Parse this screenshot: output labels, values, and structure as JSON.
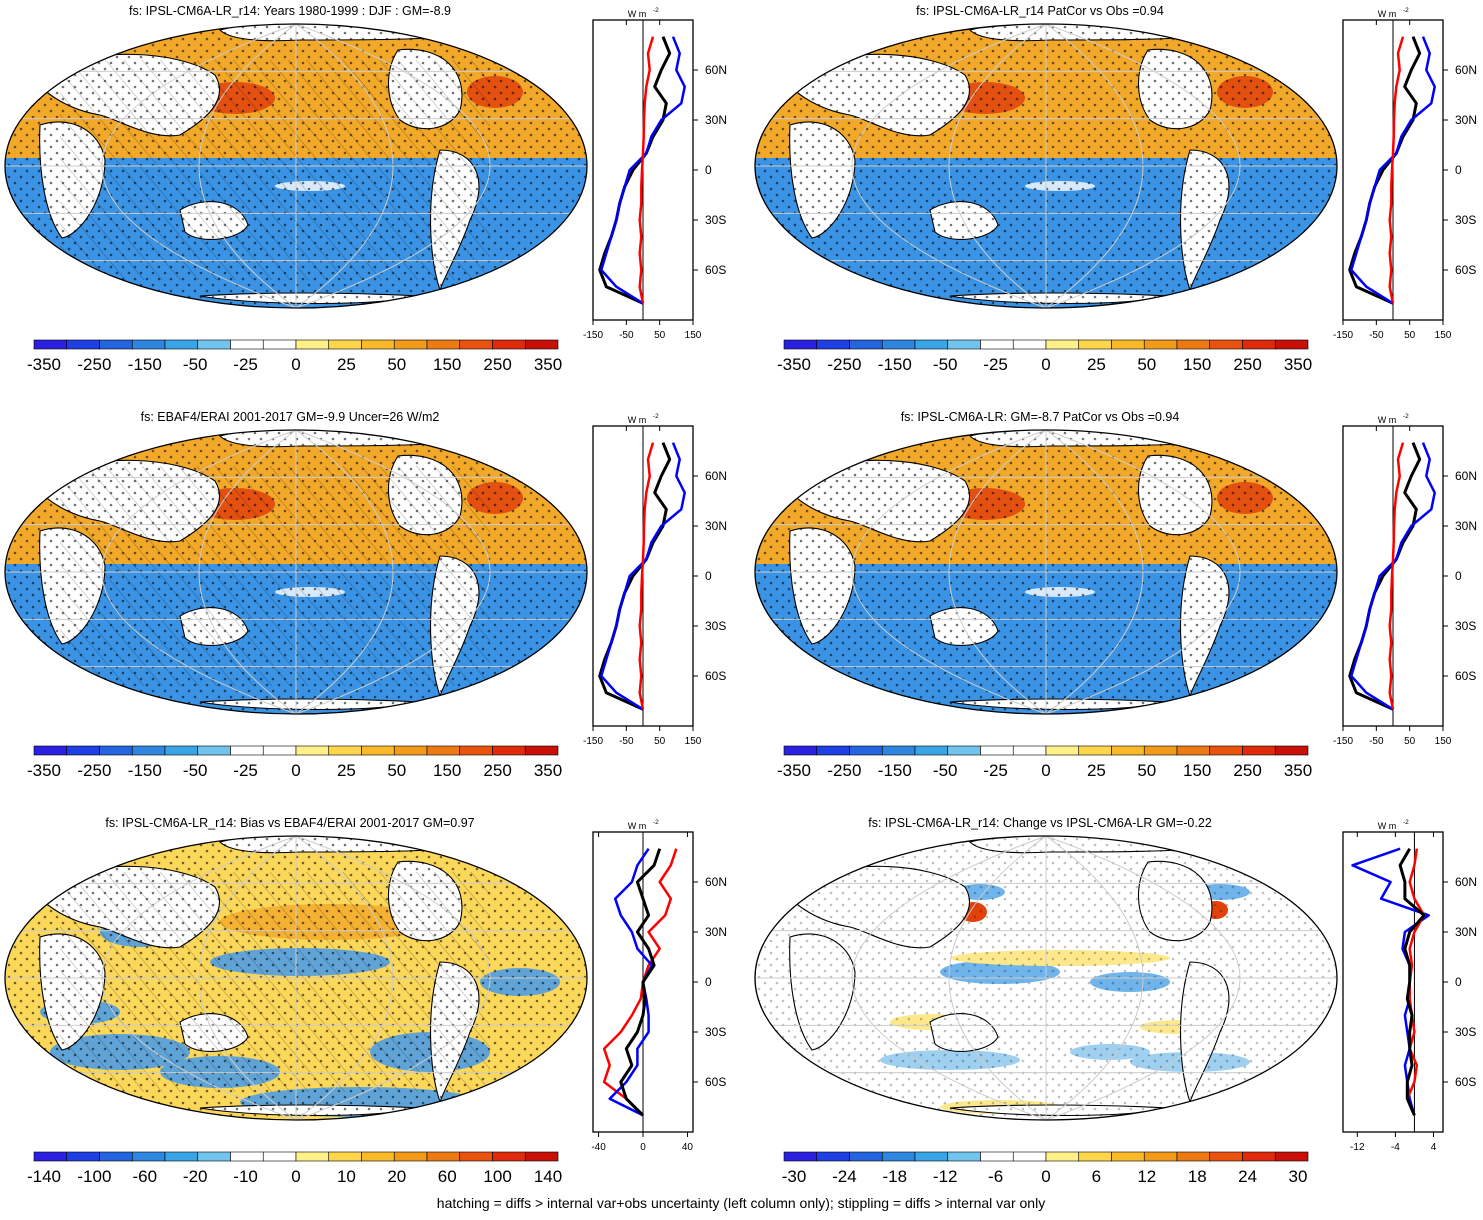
{
  "footer": "hatching = diffs > internal var+obs uncertainty (left column only); stippling = diffs > internal var only",
  "zonal_unit": "W m",
  "zonal_unit_exp": "-2",
  "colors": {
    "model": "#000000",
    "obs": "#0000ff",
    "other": "#ff0000",
    "ocean_neg": "#3a93e4",
    "ocean_pos": "#f2a11f",
    "land": "#ffffff"
  },
  "chart_data": [
    {
      "type": "heatmap",
      "title": "fs: IPSL-CM6A-LR_r14: Years 1980-1999 : DJF : GM=-8.9",
      "kind": "mean",
      "colorbar_labels": [
        "-350",
        "-250",
        "-150",
        "-50",
        "-25",
        "0",
        "25",
        "50",
        "150",
        "250",
        "350"
      ],
      "lat_labels": [
        "60N",
        "30N",
        "0",
        "30S",
        "60S"
      ],
      "zonal_xticks": [
        "-150",
        "-50",
        "50",
        "150"
      ],
      "zonal_xlim": [
        -150,
        150
      ],
      "zonal_series": [
        {
          "color": "black",
          "lat": [
            -80,
            -70,
            -60,
            -50,
            -40,
            -30,
            -20,
            -10,
            0,
            10,
            20,
            30,
            40,
            50,
            60,
            70,
            80
          ],
          "values": [
            0,
            -110,
            -130,
            -115,
            -95,
            -80,
            -70,
            -55,
            -30,
            10,
            30,
            60,
            70,
            35,
            55,
            80,
            60
          ]
        },
        {
          "color": "blue",
          "lat": [
            -80,
            -70,
            -60,
            -50,
            -40,
            -30,
            -20,
            -10,
            0,
            10,
            20,
            30,
            40,
            50,
            60,
            70,
            80
          ],
          "values": [
            0,
            -80,
            -125,
            -110,
            -95,
            -80,
            -70,
            -55,
            -40,
            10,
            25,
            55,
            115,
            125,
            100,
            110,
            90
          ]
        },
        {
          "color": "red",
          "lat": [
            -80,
            -70,
            -60,
            -50,
            -40,
            -30,
            -20,
            -10,
            0,
            10,
            20,
            30,
            40,
            50,
            60,
            70,
            80
          ],
          "values": [
            0,
            -10,
            -5,
            -10,
            -5,
            -10,
            -5,
            -5,
            -3,
            0,
            2,
            3,
            5,
            10,
            20,
            15,
            30
          ]
        }
      ]
    },
    {
      "type": "heatmap",
      "title": "fs: IPSL-CM6A-LR_r14 PatCor vs Obs =0.94",
      "kind": "mean",
      "colorbar_labels": [
        "-350",
        "-250",
        "-150",
        "-50",
        "-25",
        "0",
        "25",
        "50",
        "150",
        "250",
        "350"
      ],
      "lat_labels": [
        "60N",
        "30N",
        "0",
        "30S",
        "60S"
      ],
      "zonal_xticks": [
        "-150",
        "-50",
        "50",
        "150"
      ],
      "zonal_xlim": [
        -150,
        150
      ],
      "zonal_series": [
        {
          "color": "black",
          "lat": [
            -80,
            -70,
            -60,
            -50,
            -40,
            -30,
            -20,
            -10,
            0,
            10,
            20,
            30,
            40,
            50,
            60,
            70,
            80
          ],
          "values": [
            0,
            -110,
            -130,
            -115,
            -95,
            -80,
            -70,
            -55,
            -30,
            10,
            30,
            60,
            70,
            35,
            55,
            80,
            60
          ]
        },
        {
          "color": "blue",
          "lat": [
            -80,
            -70,
            -60,
            -50,
            -40,
            -30,
            -20,
            -10,
            0,
            10,
            20,
            30,
            40,
            50,
            60,
            70,
            80
          ],
          "values": [
            0,
            -80,
            -125,
            -110,
            -95,
            -80,
            -70,
            -55,
            -40,
            10,
            25,
            55,
            115,
            125,
            100,
            110,
            90
          ]
        },
        {
          "color": "red",
          "lat": [
            -80,
            -70,
            -60,
            -50,
            -40,
            -30,
            -20,
            -10,
            0,
            10,
            20,
            30,
            40,
            50,
            60,
            70,
            80
          ],
          "values": [
            0,
            -10,
            -5,
            -10,
            -5,
            -10,
            -5,
            -5,
            -3,
            0,
            2,
            3,
            5,
            10,
            20,
            15,
            30
          ]
        }
      ]
    },
    {
      "type": "heatmap",
      "title": "fs: EBAF4/ERAI 2001-2017 GM=-9.9 Uncer=26 W/m2",
      "kind": "mean",
      "colorbar_labels": [
        "-350",
        "-250",
        "-150",
        "-50",
        "-25",
        "0",
        "25",
        "50",
        "150",
        "250",
        "350"
      ],
      "lat_labels": [
        "60N",
        "30N",
        "0",
        "30S",
        "60S"
      ],
      "zonal_xticks": [
        "-150",
        "-50",
        "50",
        "150"
      ],
      "zonal_xlim": [
        -150,
        150
      ],
      "zonal_series": [
        {
          "color": "black",
          "lat": [
            -80,
            -70,
            -60,
            -50,
            -40,
            -30,
            -20,
            -10,
            0,
            10,
            20,
            30,
            40,
            50,
            60,
            70,
            80
          ],
          "values": [
            0,
            -110,
            -130,
            -115,
            -95,
            -80,
            -70,
            -55,
            -30,
            10,
            30,
            60,
            70,
            35,
            55,
            80,
            60
          ]
        },
        {
          "color": "blue",
          "lat": [
            -80,
            -70,
            -60,
            -50,
            -40,
            -30,
            -20,
            -10,
            0,
            10,
            20,
            30,
            40,
            50,
            60,
            70,
            80
          ],
          "values": [
            0,
            -80,
            -125,
            -110,
            -95,
            -80,
            -70,
            -55,
            -40,
            10,
            25,
            55,
            115,
            125,
            100,
            110,
            90
          ]
        },
        {
          "color": "red",
          "lat": [
            -80,
            -70,
            -60,
            -50,
            -40,
            -30,
            -20,
            -10,
            0,
            10,
            20,
            30,
            40,
            50,
            60,
            70,
            80
          ],
          "values": [
            0,
            -10,
            -5,
            -10,
            -5,
            -10,
            -5,
            -5,
            -3,
            0,
            2,
            3,
            5,
            10,
            20,
            15,
            30
          ]
        }
      ]
    },
    {
      "type": "heatmap",
      "title": "fs: IPSL-CM6A-LR: GM=-8.7 PatCor vs Obs =0.94",
      "kind": "mean",
      "colorbar_labels": [
        "-350",
        "-250",
        "-150",
        "-50",
        "-25",
        "0",
        "25",
        "50",
        "150",
        "250",
        "350"
      ],
      "lat_labels": [
        "60N",
        "30N",
        "0",
        "30S",
        "60S"
      ],
      "zonal_xticks": [
        "-150",
        "-50",
        "50",
        "150"
      ],
      "zonal_xlim": [
        -150,
        150
      ],
      "zonal_series": [
        {
          "color": "black",
          "lat": [
            -80,
            -70,
            -60,
            -50,
            -40,
            -30,
            -20,
            -10,
            0,
            10,
            20,
            30,
            40,
            50,
            60,
            70,
            80
          ],
          "values": [
            0,
            -110,
            -130,
            -115,
            -95,
            -80,
            -70,
            -55,
            -30,
            10,
            30,
            60,
            70,
            35,
            55,
            80,
            60
          ]
        },
        {
          "color": "blue",
          "lat": [
            -80,
            -70,
            -60,
            -50,
            -40,
            -30,
            -20,
            -10,
            0,
            10,
            20,
            30,
            40,
            50,
            60,
            70,
            80
          ],
          "values": [
            0,
            -80,
            -125,
            -110,
            -95,
            -80,
            -70,
            -55,
            -40,
            10,
            25,
            55,
            115,
            125,
            100,
            110,
            90
          ]
        },
        {
          "color": "red",
          "lat": [
            -80,
            -70,
            -60,
            -50,
            -40,
            -30,
            -20,
            -10,
            0,
            10,
            20,
            30,
            40,
            50,
            60,
            70,
            80
          ],
          "values": [
            0,
            -10,
            -5,
            -10,
            -5,
            -10,
            -5,
            -5,
            -3,
            0,
            2,
            3,
            5,
            10,
            20,
            15,
            30
          ]
        }
      ]
    },
    {
      "type": "heatmap",
      "title": "fs: IPSL-CM6A-LR_r14: Bias vs EBAF4/ERAI 2001-2017 GM=0.97",
      "kind": "bias",
      "colorbar_labels": [
        "-140",
        "-100",
        "-60",
        "-20",
        "-10",
        "0",
        "10",
        "20",
        "60",
        "100",
        "140"
      ],
      "lat_labels": [
        "60N",
        "30N",
        "0",
        "30S",
        "60S"
      ],
      "zonal_xticks": [
        "-40",
        "0",
        "40"
      ],
      "zonal_xlim": [
        -45,
        45
      ],
      "zonal_series": [
        {
          "color": "red",
          "lat": [
            -80,
            -70,
            -60,
            -50,
            -40,
            -30,
            -20,
            -10,
            0,
            10,
            20,
            30,
            40,
            50,
            60,
            70,
            80
          ],
          "values": [
            0,
            -15,
            -35,
            -30,
            -35,
            -20,
            -10,
            -2,
            0,
            5,
            15,
            5,
            20,
            25,
            15,
            25,
            30
          ]
        },
        {
          "color": "blue",
          "lat": [
            -80,
            -70,
            -60,
            -50,
            -40,
            -30,
            -20,
            -10,
            0,
            10,
            20,
            30,
            40,
            50,
            60,
            70,
            80
          ],
          "values": [
            0,
            -30,
            -15,
            -5,
            -5,
            5,
            5,
            3,
            0,
            8,
            -5,
            -10,
            -20,
            -25,
            -10,
            -5,
            5
          ]
        },
        {
          "color": "black",
          "lat": [
            -80,
            -70,
            -60,
            -50,
            -40,
            -30,
            -20,
            -10,
            0,
            10,
            20,
            30,
            40,
            50,
            60,
            70,
            80
          ],
          "values": [
            0,
            -15,
            -20,
            -10,
            -15,
            -5,
            0,
            2,
            0,
            10,
            5,
            -5,
            5,
            0,
            -5,
            10,
            15
          ]
        }
      ]
    },
    {
      "type": "heatmap",
      "title": "fs: IPSL-CM6A-LR_r14: Change vs IPSL-CM6A-LR GM=-0.22",
      "kind": "change",
      "colorbar_labels": [
        "-30",
        "-24",
        "-18",
        "-12",
        "-6",
        "0",
        "6",
        "12",
        "18",
        "24",
        "30"
      ],
      "lat_labels": [
        "60N",
        "30N",
        "0",
        "30S",
        "60S"
      ],
      "zonal_xticks": [
        "-12",
        "-4",
        "4"
      ],
      "zonal_xlim": [
        -15,
        6
      ],
      "zonal_series": [
        {
          "color": "blue",
          "lat": [
            -80,
            -70,
            -60,
            -50,
            -40,
            -30,
            -20,
            -10,
            0,
            10,
            20,
            30,
            40,
            50,
            60,
            70,
            80
          ],
          "values": [
            0,
            -1,
            -1.5,
            -2,
            -1,
            -1.5,
            -2,
            -1,
            -1,
            -1,
            -2.5,
            -2,
            3,
            -7,
            -5,
            -13,
            -3
          ]
        },
        {
          "color": "red",
          "lat": [
            -80,
            -70,
            -60,
            -50,
            -40,
            -30,
            -20,
            -10,
            0,
            10,
            20,
            30,
            40,
            50,
            60,
            70,
            80
          ],
          "values": [
            0,
            -1.5,
            0,
            0.5,
            -1,
            0,
            -0.5,
            -1,
            -1,
            -0.5,
            -1,
            0,
            2,
            0,
            -1,
            0,
            0.5
          ]
        },
        {
          "color": "black",
          "lat": [
            -80,
            -70,
            -60,
            -50,
            -40,
            -30,
            -20,
            -10,
            0,
            10,
            20,
            30,
            40,
            50,
            60,
            70,
            80
          ],
          "values": [
            0,
            -1.5,
            -1.5,
            -0.5,
            -1,
            -1,
            -0.5,
            -1.5,
            -1,
            -1,
            -2,
            -1,
            2,
            -2,
            -2,
            -3,
            -1
          ]
        }
      ]
    }
  ]
}
